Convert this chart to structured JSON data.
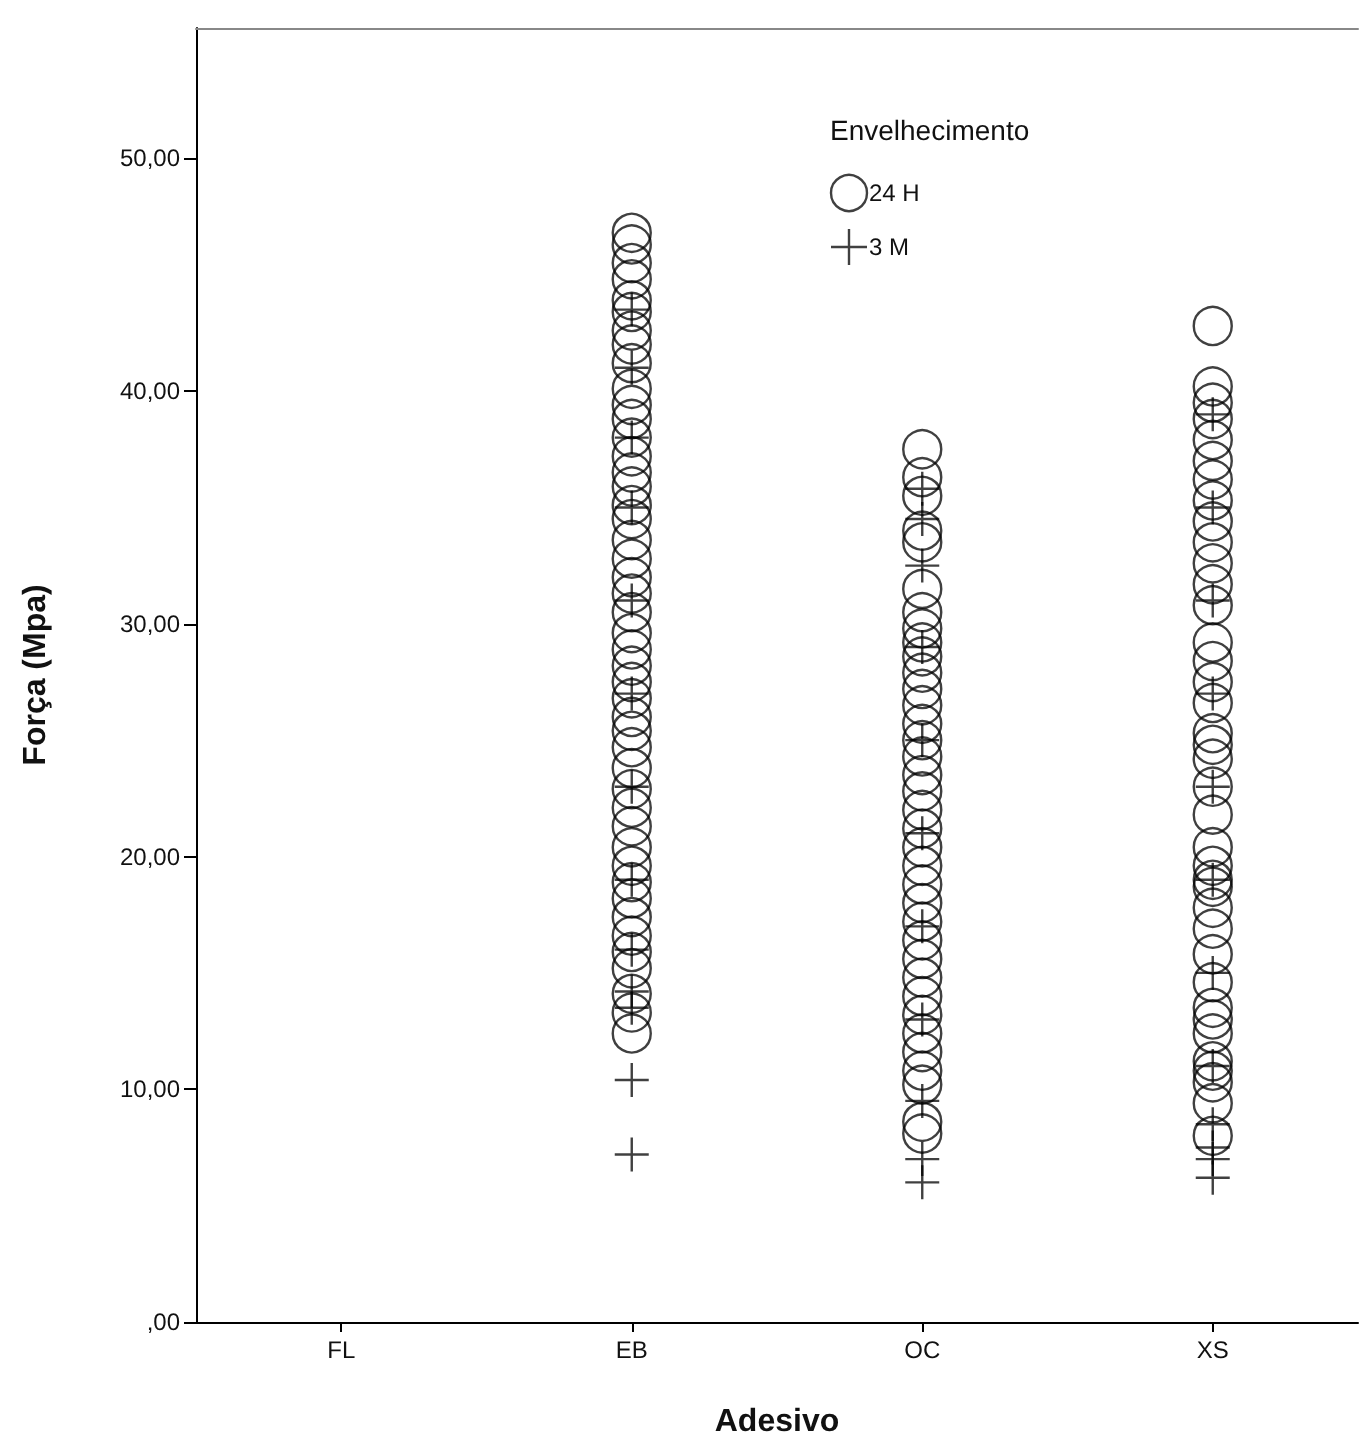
{
  "chart_data": {
    "type": "scatter",
    "xlabel": "Adesivo",
    "ylabel": "Força (Mpa)",
    "legend_title": "Envelhecimento",
    "legend": "top right",
    "grid": false,
    "categories": [
      "FL",
      "EB",
      "OC",
      "XS"
    ],
    "ylim": [
      0,
      55.6
    ],
    "yticks": [
      {
        "value": 0,
        "label": ",00"
      },
      {
        "value": 10,
        "label": "10,00"
      },
      {
        "value": 20,
        "label": "20,00"
      },
      {
        "value": 30,
        "label": "30,00"
      },
      {
        "value": 40,
        "label": "40,00"
      },
      {
        "value": 50,
        "label": "50,00"
      }
    ],
    "series": [
      {
        "name": "24 H",
        "color": "#000000",
        "marker": "circle",
        "x": [
          "EB",
          "EB",
          "EB",
          "EB",
          "EB",
          "EB",
          "EB",
          "EB",
          "EB",
          "EB",
          "EB",
          "EB",
          "EB",
          "EB",
          "EB",
          "EB",
          "EB",
          "EB",
          "EB",
          "EB",
          "EB",
          "EB",
          "EB",
          "EB",
          "EB",
          "EB",
          "EB",
          "EB",
          "EB",
          "EB",
          "EB",
          "EB",
          "EB",
          "EB",
          "EB",
          "EB",
          "EB",
          "EB",
          "EB",
          "EB",
          "EB",
          "EB",
          "EB",
          "EB",
          "EB",
          "EB",
          "OC",
          "OC",
          "OC",
          "OC",
          "OC",
          "OC",
          "OC",
          "OC",
          "OC",
          "OC",
          "OC",
          "OC",
          "OC",
          "OC",
          "OC",
          "OC",
          "OC",
          "OC",
          "OC",
          "OC",
          "OC",
          "OC",
          "OC",
          "OC",
          "OC",
          "OC",
          "OC",
          "OC",
          "OC",
          "OC",
          "OC",
          "OC",
          "OC",
          "OC",
          "OC",
          "OC",
          "XS",
          "XS",
          "XS",
          "XS",
          "XS",
          "XS",
          "XS",
          "XS",
          "XS",
          "XS",
          "XS",
          "XS",
          "XS",
          "XS",
          "XS",
          "XS",
          "XS",
          "XS",
          "XS",
          "XS",
          "XS",
          "XS",
          "XS",
          "XS",
          "XS",
          "XS",
          "XS",
          "XS",
          "XS",
          "XS",
          "XS",
          "XS",
          "XS",
          "XS",
          "XS",
          "XS",
          "XS",
          "XS"
        ],
        "values": [
          46.8,
          46.3,
          45.5,
          44.8,
          43.9,
          43.4,
          42.6,
          42.0,
          41.2,
          40.1,
          39.4,
          38.8,
          38.0,
          37.2,
          36.5,
          35.9,
          35.1,
          34.5,
          33.6,
          32.8,
          32.0,
          31.3,
          30.5,
          29.6,
          28.9,
          28.2,
          27.5,
          26.8,
          26.0,
          25.4,
          24.7,
          23.8,
          22.9,
          22.1,
          21.3,
          20.4,
          19.6,
          18.9,
          18.2,
          17.4,
          16.6,
          15.9,
          15.2,
          14.1,
          13.3,
          12.4,
          37.5,
          36.3,
          35.5,
          34.0,
          33.5,
          31.5,
          30.5,
          29.8,
          29.2,
          28.6,
          27.9,
          27.2,
          26.5,
          25.7,
          25.0,
          24.3,
          23.5,
          22.8,
          22.0,
          21.2,
          20.4,
          19.6,
          18.8,
          18.0,
          17.2,
          16.4,
          15.6,
          14.8,
          14.0,
          13.2,
          12.4,
          11.6,
          10.8,
          10.2,
          8.6,
          8.1,
          42.8,
          40.2,
          39.5,
          38.8,
          37.9,
          37.0,
          36.2,
          35.3,
          34.4,
          33.5,
          32.6,
          31.7,
          30.8,
          29.2,
          28.4,
          27.5,
          26.6,
          25.3,
          24.2,
          23.0,
          21.8,
          20.4,
          19.6,
          18.7,
          17.8,
          16.9,
          15.8,
          14.6,
          13.5,
          12.4,
          11.2,
          10.3,
          9.4,
          8.0,
          24.8,
          19.0,
          13.0,
          10.8
        ]
      },
      {
        "name": "3 M",
        "color": "#000000",
        "marker": "cross",
        "x": [
          "EB",
          "EB",
          "EB",
          "EB",
          "EB",
          "EB",
          "EB",
          "EB",
          "EB",
          "EB",
          "EB",
          "EB",
          "EB",
          "OC",
          "OC",
          "OC",
          "OC",
          "OC",
          "OC",
          "OC",
          "OC",
          "OC",
          "OC",
          "OC",
          "XS",
          "XS",
          "XS",
          "XS",
          "XS",
          "XS",
          "XS",
          "XS",
          "XS",
          "XS",
          "XS",
          "XS"
        ],
        "values": [
          43.5,
          41.0,
          38.0,
          35.0,
          31.0,
          27.0,
          23.0,
          19.0,
          16.0,
          14.2,
          13.5,
          10.4,
          7.2,
          35.8,
          34.5,
          32.5,
          29.0,
          25.0,
          21.0,
          17.0,
          13.0,
          9.5,
          7.0,
          6.0,
          39.0,
          35.0,
          31.0,
          27.0,
          23.0,
          19.0,
          15.0,
          11.0,
          8.5,
          7.5,
          7.0,
          6.2
        ]
      }
    ]
  }
}
